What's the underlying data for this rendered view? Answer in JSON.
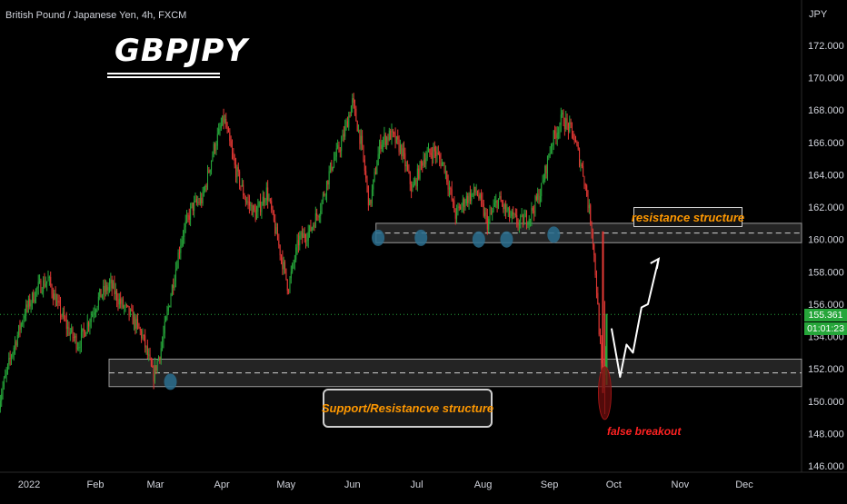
{
  "header": {
    "symbol": "British Pound / Japanese Yen, 4h, FXCM",
    "big_title": "GBPJPY"
  },
  "colors": {
    "background": "#000000",
    "up_candle": "#26a63a",
    "down_candle": "#e53935",
    "zone_fill": "#2a2a2a",
    "zone_border": "#9a9a9a",
    "touch_marker": "#2a6f8f",
    "annotation_text": "#ff9800",
    "false_breakout": "#ff2222",
    "current_price_line": "#26a63a"
  },
  "chart_data": {
    "type": "line",
    "title": "GBPJPY",
    "instrument": "British Pound / Japanese Yen",
    "timeframe": "4h",
    "source": "FXCM",
    "y_unit": "JPY",
    "ylim": [
      146.0,
      174.0
    ],
    "yticks": [
      "146.000",
      "148.000",
      "150.000",
      "152.000",
      "154.000",
      "156.000",
      "158.000",
      "160.000",
      "162.000",
      "164.000",
      "166.000",
      "168.000",
      "170.000",
      "172.000"
    ],
    "x_labels": [
      "2022",
      "Feb",
      "Mar",
      "Apr",
      "May",
      "Jun",
      "Jul",
      "Aug",
      "Sep",
      "Oct",
      "Nov",
      "Dec"
    ],
    "x_dates": [
      "2022-01-01",
      "2022-02-01",
      "2022-03-01",
      "2022-04-01",
      "2022-05-01",
      "2022-06-01",
      "2022-07-01",
      "2022-08-01",
      "2022-09-01",
      "2022-10-01",
      "2022-11-01",
      "2022-12-01"
    ],
    "series": [
      {
        "x": [
          "2021-12-18",
          "2021-12-24",
          "2021-12-30",
          "2022-01-05",
          "2022-01-10",
          "2022-01-14",
          "2022-01-19",
          "2022-01-24",
          "2022-01-29",
          "2022-02-03",
          "2022-02-08",
          "2022-02-13",
          "2022-02-18",
          "2022-02-23",
          "2022-02-28",
          "2022-03-04",
          "2022-03-08",
          "2022-03-13",
          "2022-03-18",
          "2022-03-23",
          "2022-03-28",
          "2022-04-02",
          "2022-04-07",
          "2022-04-12",
          "2022-04-17",
          "2022-04-22",
          "2022-04-27",
          "2022-05-02",
          "2022-05-07",
          "2022-05-12",
          "2022-05-17",
          "2022-05-22",
          "2022-05-27",
          "2022-06-01",
          "2022-06-05",
          "2022-06-09",
          "2022-06-14",
          "2022-06-19",
          "2022-06-24",
          "2022-06-29",
          "2022-07-04",
          "2022-07-09",
          "2022-07-14",
          "2022-07-19",
          "2022-07-24",
          "2022-07-29",
          "2022-08-03",
          "2022-08-08",
          "2022-08-13",
          "2022-08-18",
          "2022-08-23",
          "2022-08-28",
          "2022-09-02",
          "2022-09-07",
          "2022-09-12",
          "2022-09-17",
          "2022-09-21",
          "2022-09-23",
          "2022-09-26",
          "2022-09-28"
        ],
        "values": [
          150.0,
          153.0,
          155.5,
          157.0,
          157.5,
          156.0,
          154.5,
          153.5,
          155.0,
          156.5,
          157.2,
          156.0,
          155.2,
          154.0,
          151.5,
          153.5,
          156.5,
          160.0,
          162.0,
          162.5,
          165.5,
          167.5,
          164.5,
          162.5,
          161.5,
          163.0,
          160.0,
          157.0,
          160.0,
          160.5,
          162.0,
          164.5,
          166.0,
          168.5,
          166.0,
          162.0,
          166.0,
          166.5,
          165.5,
          163.0,
          165.0,
          165.5,
          164.5,
          161.5,
          162.5,
          163.0,
          161.0,
          162.5,
          161.5,
          161.0,
          161.5,
          163.0,
          166.0,
          167.5,
          166.5,
          164.0,
          160.5,
          157.0,
          150.5,
          155.4
        ]
      }
    ],
    "current_price": 155.361,
    "countdown": "01:01:23",
    "zones": [
      {
        "label": "resistance structure",
        "from": 159.8,
        "to": 161.0
      },
      {
        "label": "Support/Resistancve structure",
        "from": 150.9,
        "to": 152.6
      }
    ],
    "annotations": {
      "resistance": "resistance structure",
      "support": "Support/Resistancve structure",
      "false_breakout": "false breakout"
    },
    "touch_points": [
      {
        "date": "2022-03-08",
        "value": 151.2
      },
      {
        "date": "2022-06-13",
        "value": 160.1
      },
      {
        "date": "2022-07-03",
        "value": 160.1
      },
      {
        "date": "2022-07-30",
        "value": 160.0
      },
      {
        "date": "2022-08-12",
        "value": 160.0
      },
      {
        "date": "2022-09-03",
        "value": 160.3
      }
    ],
    "projection": [
      {
        "date": "2022-09-30",
        "value": 154.5
      },
      {
        "date": "2022-10-04",
        "value": 151.5
      },
      {
        "date": "2022-10-07",
        "value": 153.5
      },
      {
        "date": "2022-10-10",
        "value": 153.0
      },
      {
        "date": "2022-10-14",
        "value": 155.8
      },
      {
        "date": "2022-10-17",
        "value": 156.0
      },
      {
        "date": "2022-10-22",
        "value": 158.8
      }
    ],
    "false_breakout_low": 148.9,
    "grid": false,
    "legend": "none"
  }
}
